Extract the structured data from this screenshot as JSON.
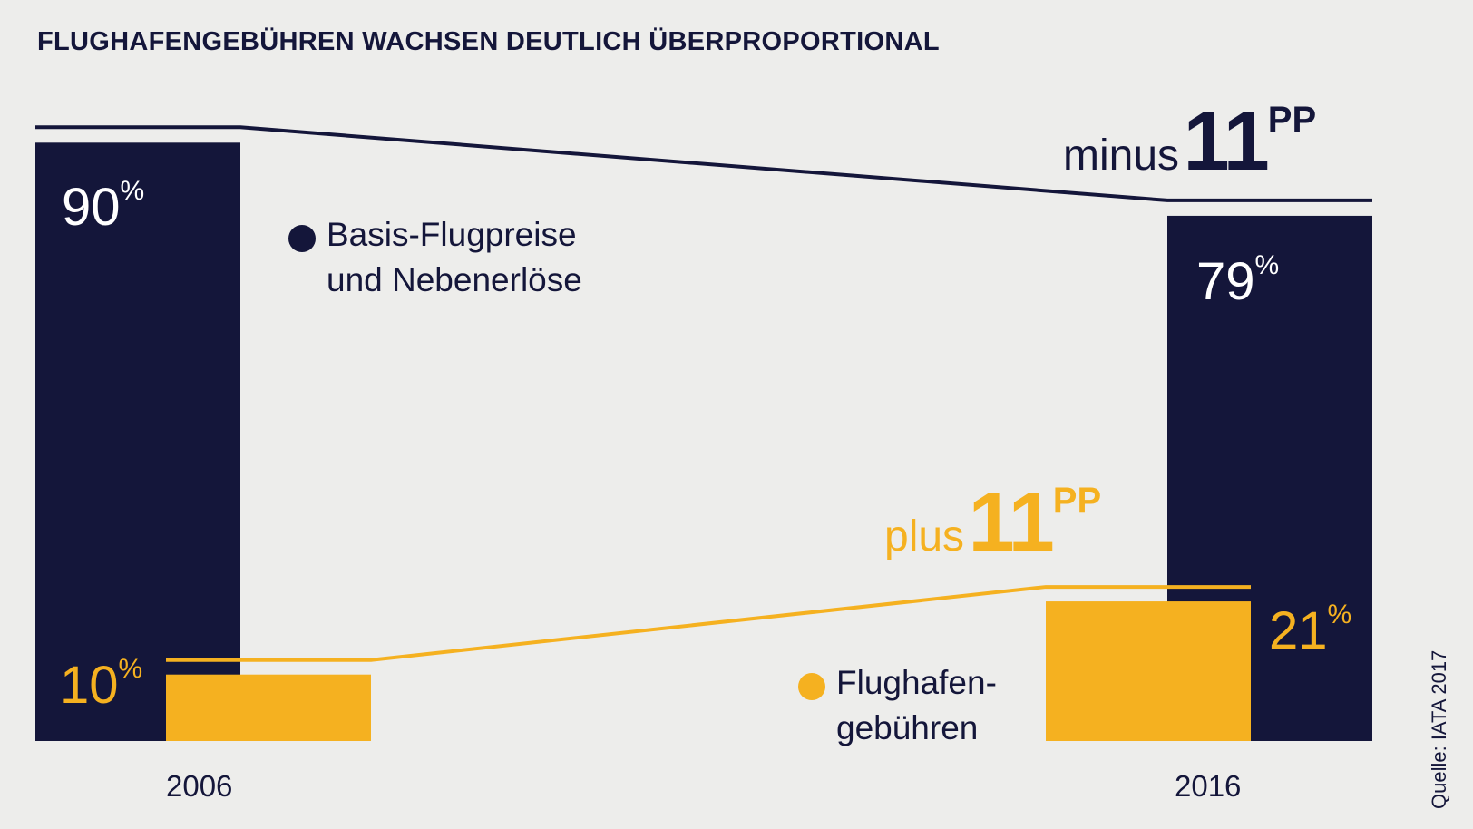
{
  "title": "FLUGHAFENGEBÜHREN WACHSEN DEUTLICH ÜBERPROPORTIONAL",
  "source": "Quelle: IATA 2017",
  "colors": {
    "navy": "#14163a",
    "gold": "#f5b120",
    "background": "#ededeb"
  },
  "chart_data": {
    "type": "bar",
    "categories": [
      "2006",
      "2016"
    ],
    "series": [
      {
        "name": "Basis-Flugpreise und Nebenerlöse",
        "values": [
          90,
          79
        ],
        "color": "#14163a"
      },
      {
        "name": "Flughafengebühren",
        "values": [
          10,
          21
        ],
        "color": "#f5b120"
      }
    ],
    "ylim": [
      0,
      100
    ],
    "unit": "%",
    "annotations": [
      {
        "series": "Basis-Flugpreise und Nebenerlöse",
        "prefix": "minus",
        "number": "11",
        "suffix": "PP"
      },
      {
        "series": "Flughafengebühren",
        "prefix": "plus",
        "number": "11",
        "suffix": "PP"
      }
    ]
  },
  "labels": {
    "navy_2006": {
      "number": "90",
      "unit": "%"
    },
    "navy_2016": {
      "number": "79",
      "unit": "%"
    },
    "gold_2006": {
      "number": "10",
      "unit": "%"
    },
    "gold_2016": {
      "number": "21",
      "unit": "%"
    },
    "minus_prefix": "minus",
    "minus_number": "11",
    "minus_suffix": "PP",
    "plus_prefix": "plus",
    "plus_number": "11",
    "plus_suffix": "PP"
  },
  "legend": {
    "navy": {
      "line1": "Basis-Flugpreise",
      "line2": "und Nebenerlöse"
    },
    "gold": {
      "line1": "Flughafen-",
      "line2": "gebühren"
    }
  }
}
